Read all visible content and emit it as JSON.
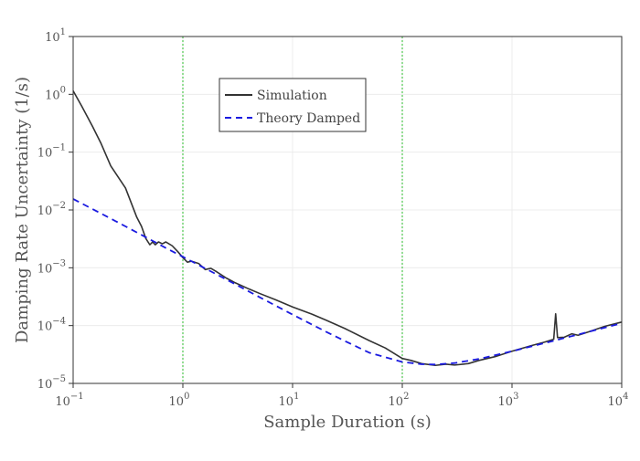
{
  "chart_data": {
    "type": "line",
    "xlabel": "Sample Duration (s)",
    "ylabel": "Damping Rate Uncertainty (1/s)",
    "xscale": "log",
    "yscale": "log",
    "xlim": [
      0.1,
      10000
    ],
    "ylim": [
      1e-05,
      10
    ],
    "grid": true,
    "legend_position": "upper-center",
    "x_ticks": [
      {
        "base": "10",
        "exp": "−1"
      },
      {
        "base": "10",
        "exp": "0"
      },
      {
        "base": "10",
        "exp": "1"
      },
      {
        "base": "10",
        "exp": "2"
      },
      {
        "base": "10",
        "exp": "3"
      },
      {
        "base": "10",
        "exp": "4"
      }
    ],
    "y_ticks": [
      {
        "base": "10",
        "exp": "−5"
      },
      {
        "base": "10",
        "exp": "−4"
      },
      {
        "base": "10",
        "exp": "−3"
      },
      {
        "base": "10",
        "exp": "−2"
      },
      {
        "base": "10",
        "exp": "−1"
      },
      {
        "base": "10",
        "exp": "0"
      },
      {
        "base": "10",
        "exp": "1"
      }
    ],
    "vlines": [
      1,
      100
    ],
    "series": [
      {
        "name": "Simulation",
        "color": "#333333",
        "style": "solid",
        "points": [
          [
            0.1,
            1.15
          ],
          [
            0.12,
            0.62
          ],
          [
            0.15,
            0.28
          ],
          [
            0.18,
            0.14
          ],
          [
            0.22,
            0.058
          ],
          [
            0.3,
            0.024
          ],
          [
            0.38,
            0.0075
          ],
          [
            0.42,
            0.0052
          ],
          [
            0.46,
            0.0032
          ],
          [
            0.5,
            0.0025
          ],
          [
            0.53,
            0.0028
          ],
          [
            0.56,
            0.0025
          ],
          [
            0.6,
            0.0028
          ],
          [
            0.65,
            0.0026
          ],
          [
            0.7,
            0.0028
          ],
          [
            0.8,
            0.0024
          ],
          [
            0.9,
            0.0019
          ],
          [
            1.0,
            0.0015
          ],
          [
            1.1,
            0.00125
          ],
          [
            1.2,
            0.0013
          ],
          [
            1.4,
            0.00118
          ],
          [
            1.6,
            0.00093
          ],
          [
            1.8,
            0.00098
          ],
          [
            2.0,
            0.00087
          ],
          [
            2.5,
            0.00066
          ],
          [
            3.0,
            0.00055
          ],
          [
            4.0,
            0.00043
          ],
          [
            5.0,
            0.00036
          ],
          [
            7.0,
            0.00028
          ],
          [
            10,
            0.00021
          ],
          [
            15,
            0.000158
          ],
          [
            20,
            0.000125
          ],
          [
            30,
            8.9e-05
          ],
          [
            50,
            5.5e-05
          ],
          [
            70,
            4.1e-05
          ],
          [
            100,
            2.7e-05
          ],
          [
            120,
            2.5e-05
          ],
          [
            150,
            2.2e-05
          ],
          [
            200,
            2.05e-05
          ],
          [
            250,
            2.15e-05
          ],
          [
            300,
            2.08e-05
          ],
          [
            400,
            2.2e-05
          ],
          [
            500,
            2.5e-05
          ],
          [
            700,
            2.9e-05
          ],
          [
            1000,
            3.6e-05
          ],
          [
            1500,
            4.5e-05
          ],
          [
            2000,
            5.2e-05
          ],
          [
            2400,
            5.8e-05
          ],
          [
            2500,
            0.00016
          ],
          [
            2600,
            6.2e-05
          ],
          [
            3000,
            6.3e-05
          ],
          [
            3500,
            7.2e-05
          ],
          [
            4000,
            6.8e-05
          ],
          [
            5000,
            7.8e-05
          ],
          [
            7000,
            9.7e-05
          ],
          [
            10000,
            0.000115
          ]
        ]
      },
      {
        "name": "Theory Damped",
        "color": "#1a1ae0",
        "style": "dashed",
        "points": [
          [
            0.1,
            0.0155
          ],
          [
            0.2,
            0.0078
          ],
          [
            0.3,
            0.0052
          ],
          [
            0.5,
            0.0031
          ],
          [
            0.7,
            0.0022
          ],
          [
            1.0,
            0.00155
          ],
          [
            2.0,
            0.00078
          ],
          [
            3.0,
            0.00052
          ],
          [
            5.0,
            0.00031
          ],
          [
            10,
            0.000155
          ],
          [
            20,
            7.9e-05
          ],
          [
            30,
            5.4e-05
          ],
          [
            50,
            3.4e-05
          ],
          [
            100,
            2.35e-05
          ],
          [
            150,
            2.15e-05
          ],
          [
            200,
            2.12e-05
          ],
          [
            300,
            2.25e-05
          ],
          [
            500,
            2.65e-05
          ],
          [
            1000,
            3.6e-05
          ],
          [
            2000,
            5e-05
          ],
          [
            3000,
            6.1e-05
          ],
          [
            5000,
            7.8e-05
          ],
          [
            10000,
            0.00011
          ]
        ]
      }
    ]
  }
}
